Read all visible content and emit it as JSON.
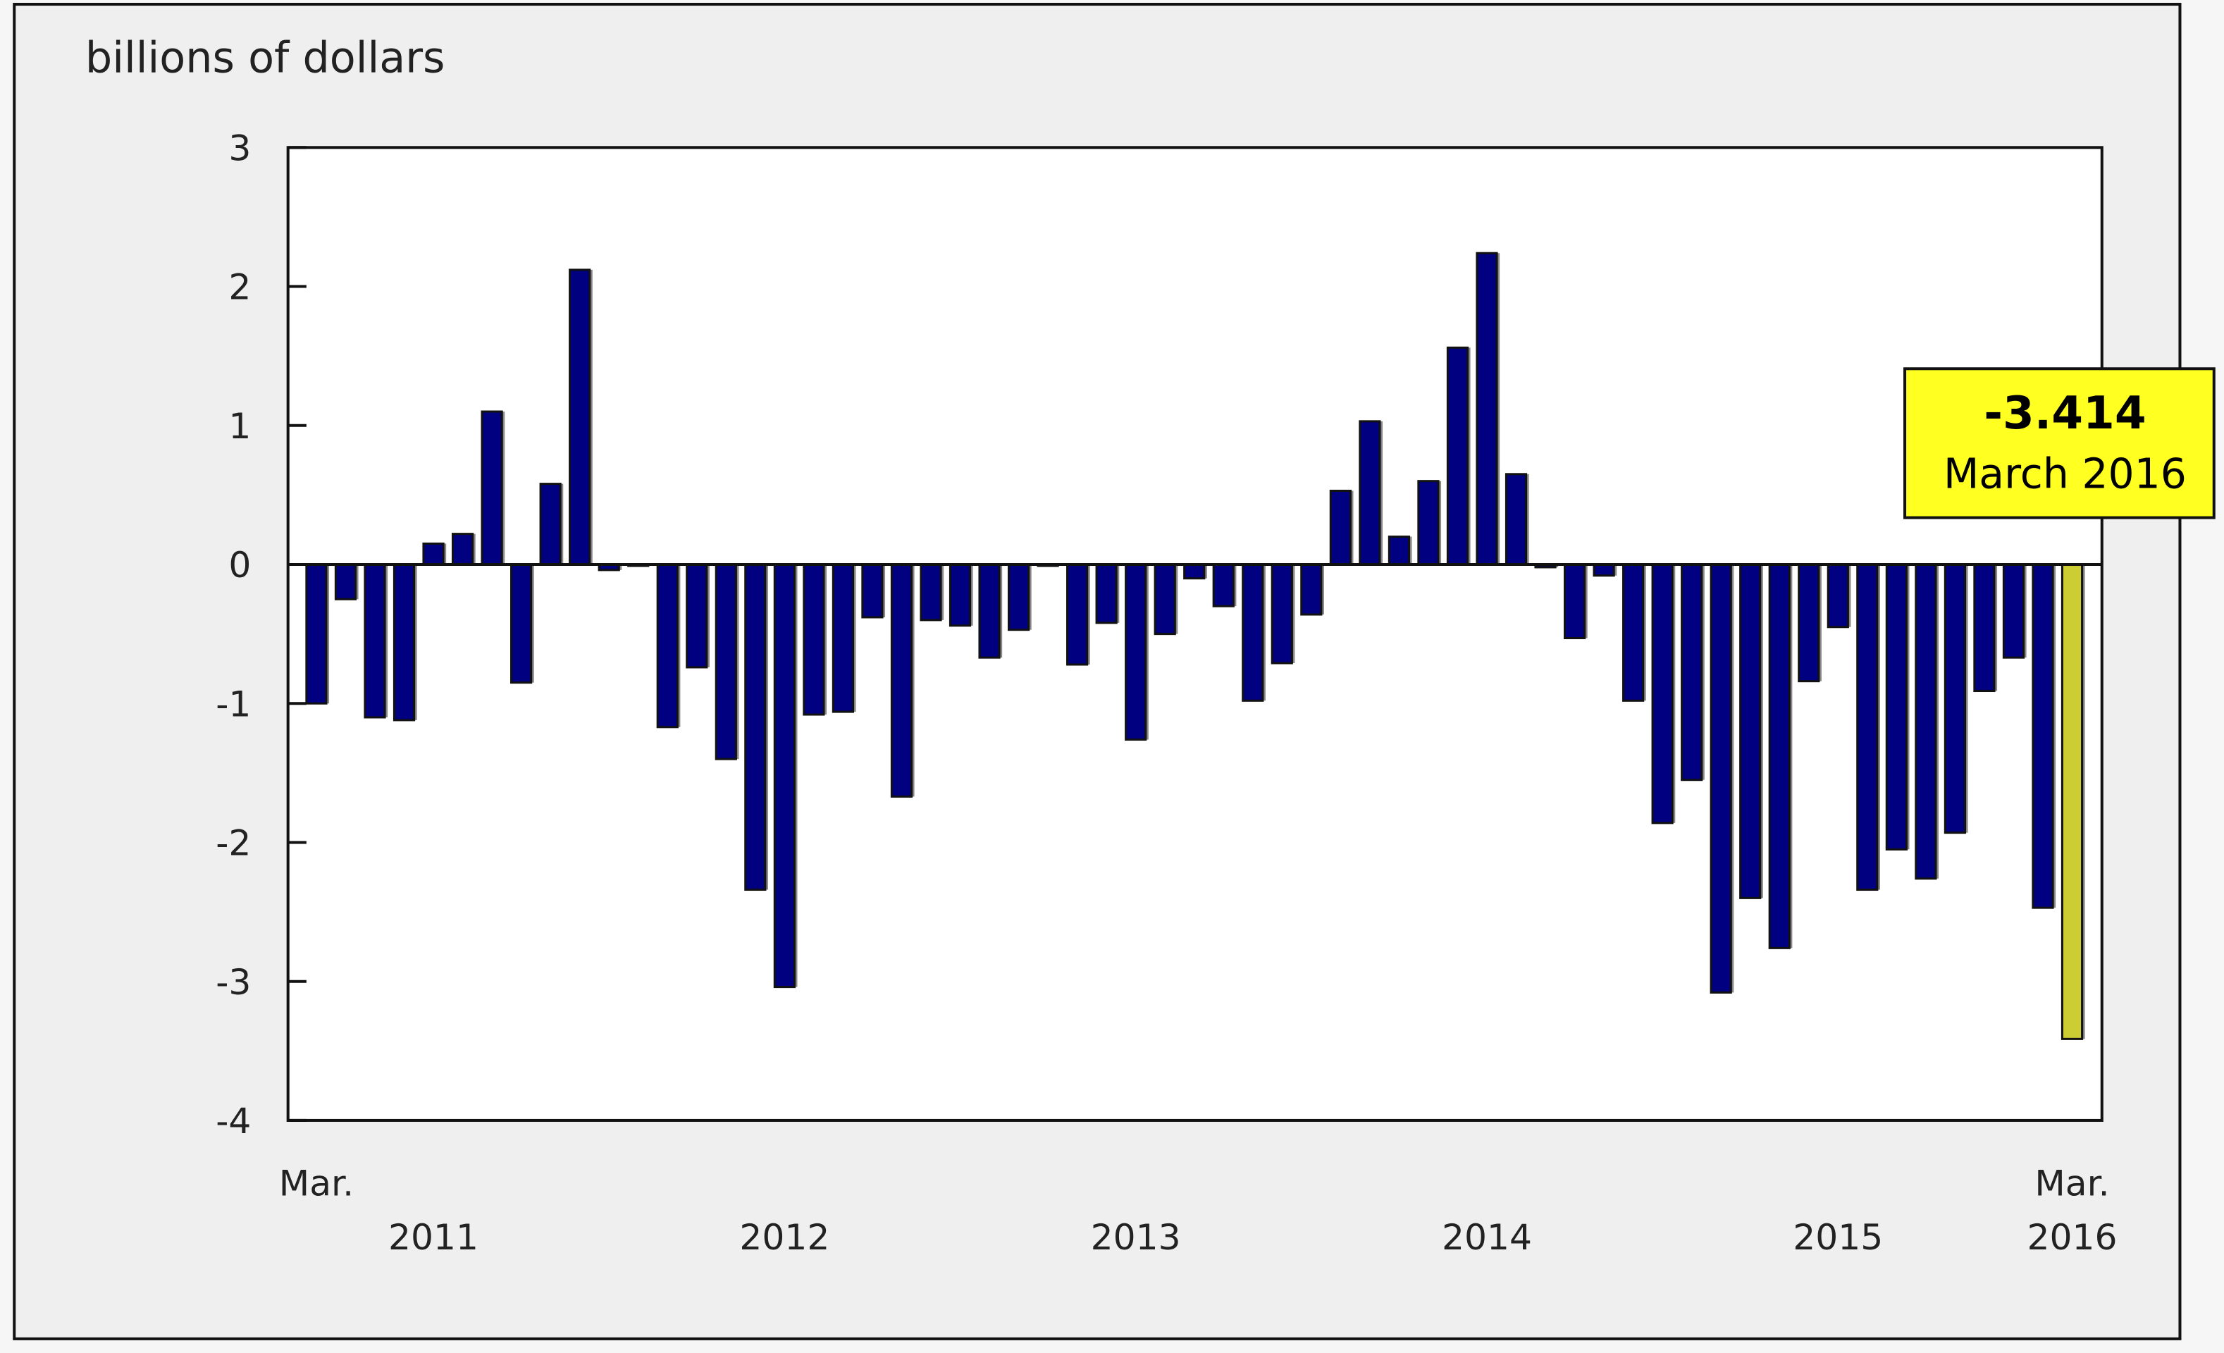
{
  "chart_data": {
    "type": "bar",
    "title": "",
    "ylabel": "billions of dollars",
    "xlabel": "",
    "ylim": [
      -4,
      3
    ],
    "yticks": [
      3,
      2,
      1,
      0,
      -1,
      -2,
      -3,
      -4
    ],
    "grid": false,
    "start": "March 2011",
    "end": "March 2016",
    "x_tick_labels": [
      {
        "month_index": 0,
        "label": "Mar."
      },
      {
        "month_index": 4,
        "label": "2011"
      },
      {
        "month_index": 16,
        "label": "2012"
      },
      {
        "month_index": 28,
        "label": "2013"
      },
      {
        "month_index": 40,
        "label": "2014"
      },
      {
        "month_index": 52,
        "label": "2015"
      },
      {
        "month_index": 60,
        "label": "Mar."
      },
      {
        "month_index": 60,
        "label": "2016"
      }
    ],
    "values": [
      -1.0,
      -0.25,
      -1.1,
      -1.12,
      0.15,
      0.22,
      1.1,
      -0.85,
      0.58,
      2.12,
      -0.04,
      -0.01,
      -1.17,
      -0.74,
      -1.4,
      -2.34,
      -3.04,
      -1.08,
      -1.06,
      -0.38,
      -1.67,
      -0.4,
      -0.44,
      -0.67,
      -0.47,
      -0.01,
      -0.72,
      -0.42,
      -1.26,
      -0.5,
      -0.1,
      -0.3,
      -0.98,
      -0.71,
      -0.36,
      0.53,
      1.03,
      0.2,
      0.6,
      1.56,
      2.24,
      0.65,
      -0.02,
      -0.53,
      -0.08,
      -0.98,
      -1.86,
      -1.55,
      -3.08,
      -2.4,
      -2.76,
      -0.84,
      -0.45,
      -2.34,
      -2.05,
      -2.26,
      -1.93,
      -0.91,
      -0.67,
      -2.47,
      -3.414
    ],
    "colors": {
      "bar": "#000080",
      "highlight": "#cccc33",
      "tooltip_bg": "#ffff22",
      "panel_bg": "#efefef"
    },
    "tooltip": {
      "value": "-3.414",
      "label": "March 2016"
    }
  }
}
